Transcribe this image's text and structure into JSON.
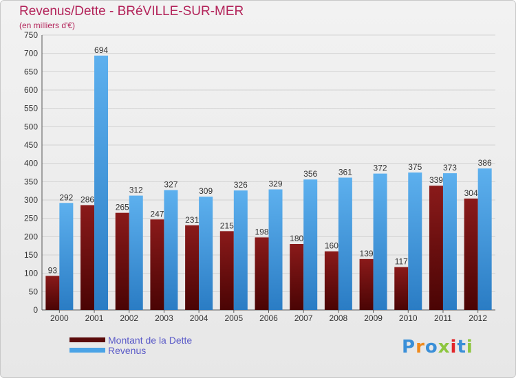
{
  "header": {
    "title": "Revenus/Dette - BRéVILLE-SUR-MER",
    "unit": "(en milliers d'€)"
  },
  "chart_data": {
    "type": "bar",
    "categories": [
      "2000",
      "2001",
      "2002",
      "2003",
      "2004",
      "2005",
      "2006",
      "2007",
      "2008",
      "2009",
      "2010",
      "2011",
      "2012"
    ],
    "series": [
      {
        "name": "Montant de la Dette",
        "color": "#7a1010",
        "values": [
          93,
          286,
          265,
          247,
          231,
          215,
          198,
          180,
          160,
          139,
          117,
          339,
          304
        ]
      },
      {
        "name": "Revenus",
        "color": "#4aa3e6",
        "values": [
          292,
          694,
          312,
          327,
          309,
          326,
          329,
          356,
          361,
          372,
          375,
          373,
          386
        ]
      }
    ],
    "ylim": [
      0,
      750
    ],
    "yticks": [
      0,
      50,
      100,
      150,
      200,
      250,
      300,
      350,
      400,
      450,
      500,
      550,
      600,
      650,
      700,
      750
    ],
    "grid": true,
    "legend": "bottom-left"
  },
  "logo": {
    "letters": [
      "P",
      "r",
      "o",
      "x",
      "i",
      "t",
      "i"
    ],
    "colors": [
      "#3a8fd8",
      "#f08a1c",
      "#3a8fd8",
      "#8dc63f",
      "#e2262a",
      "#3a8fd8",
      "#8dc63f"
    ]
  }
}
